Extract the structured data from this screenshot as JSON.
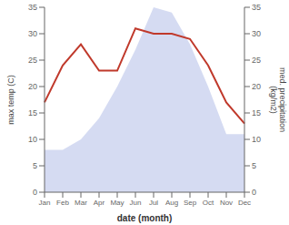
{
  "chart_data": {
    "type": "line",
    "xlabel": "date (month)",
    "ylabel": "max temp (C)",
    "y2label": "med. precipitation\n(kg/m2)",
    "categories": [
      "Jan",
      "Feb",
      "Mar",
      "Apr",
      "May",
      "Jun",
      "Jul",
      "Aug",
      "Sep",
      "Oct",
      "Nov",
      "Dec"
    ],
    "series": [
      {
        "type": "area",
        "color": "#b3bee8",
        "axis": "y2",
        "values": [
          8,
          8,
          10,
          14,
          20,
          27,
          35,
          34,
          28,
          20,
          11,
          11
        ]
      },
      {
        "type": "line",
        "color": "#c0392b",
        "values": [
          17,
          24,
          28,
          23,
          23,
          31,
          30,
          30,
          29,
          24,
          17,
          13
        ]
      }
    ],
    "ylim": [
      0,
      35
    ],
    "yticks": [
      0,
      5,
      10,
      15,
      20,
      25,
      30,
      35
    ],
    "y2lim": [
      0,
      35
    ],
    "y2ticks": [
      0,
      5,
      10,
      15,
      20,
      25,
      30,
      35
    ],
    "grid": false
  }
}
